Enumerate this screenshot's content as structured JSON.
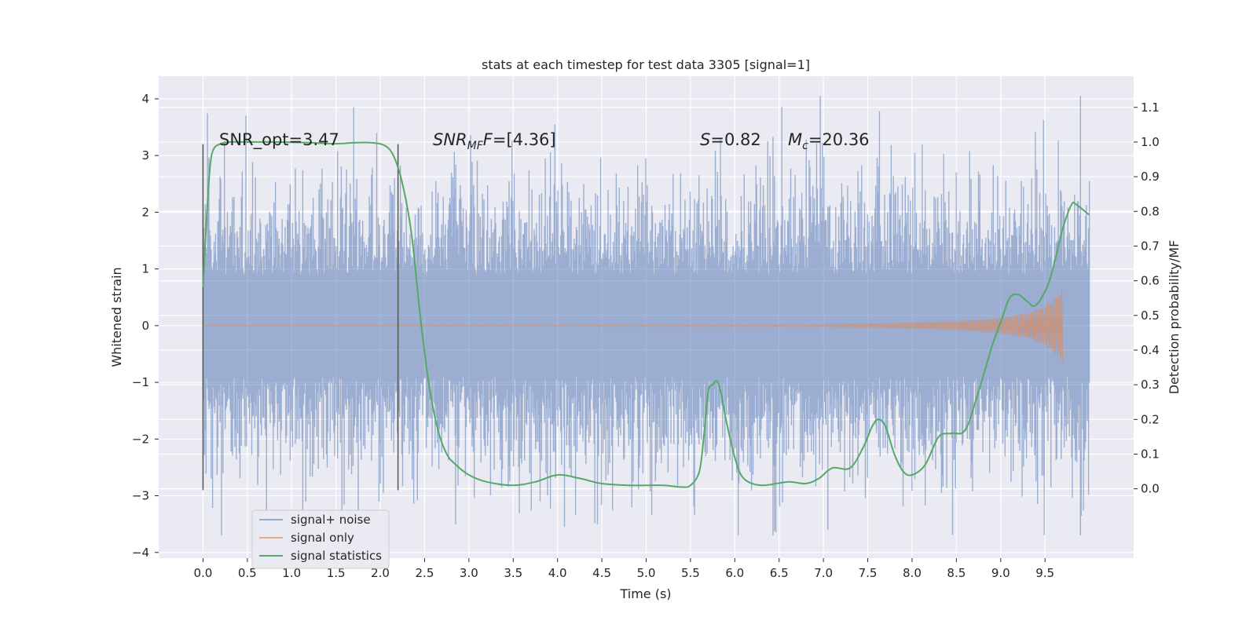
{
  "chart_data": {
    "type": "line",
    "title": "stats at each timestep for test data 3305 [signal=1]",
    "xlabel": "Time (s)",
    "ylabel_left": "Whitened strain",
    "ylabel_right": "Detection probability/MF",
    "grid": true,
    "legend_position": "lower-left",
    "xlim": [
      -0.5,
      10.5
    ],
    "ylim_left": [
      -4.1,
      4.4
    ],
    "ylim_right": [
      -0.2,
      1.19
    ],
    "x_ticks": [
      "0.0",
      "0.5",
      "1.0",
      "1.5",
      "2.0",
      "2.5",
      "3.0",
      "3.5",
      "4.0",
      "4.5",
      "5.0",
      "5.5",
      "6.0",
      "6.5",
      "7.0",
      "7.5",
      "8.0",
      "8.5",
      "9.0",
      "9.5"
    ],
    "y_ticks_left": [
      "4",
      "3",
      "2",
      "1",
      "0",
      "−1",
      "−2",
      "−3",
      "−4"
    ],
    "y_ticks_right": [
      "1.1",
      "1.0",
      "0.9",
      "0.8",
      "0.7",
      "0.6",
      "0.5",
      "0.4",
      "0.3",
      "0.2",
      "0.1",
      "0.0"
    ],
    "annotations": {
      "snr_opt": "SNR_opt=3.47",
      "snr_mf_label": "SNR",
      "snr_mf_sub": "MF",
      "snr_mf_rest": "=[4.36]",
      "s_label": "S",
      "s_value": "=0.82",
      "mc_label": "M",
      "mc_sub": "c",
      "mc_value": "=20.36"
    },
    "vertical_markers": [
      {
        "x": 0.0,
        "y_range": [
          -2.9,
          3.2
        ]
      },
      {
        "x": 2.2,
        "y_range": [
          -2.9,
          3.2
        ]
      }
    ],
    "series": [
      {
        "name": "signal+ noise",
        "color": "#4c72b0",
        "opacity": 0.5,
        "x_range": [
          0.0,
          10.0
        ],
        "typical_amplitude": 1.0,
        "min": -3.7,
        "max": 4.05
      },
      {
        "name": "signal only",
        "color": "#dd8452",
        "x_range": [
          0.0,
          9.7
        ],
        "envelope": [
          [
            0.0,
            0.0
          ],
          [
            7.0,
            0.02
          ],
          [
            8.0,
            0.05
          ],
          [
            8.5,
            0.08
          ],
          [
            9.0,
            0.14
          ],
          [
            9.3,
            0.22
          ],
          [
            9.5,
            0.35
          ],
          [
            9.65,
            0.55
          ],
          [
            9.7,
            0.65
          ]
        ]
      },
      {
        "name": "signal statistics",
        "color": "#55a868",
        "axis": "right",
        "x": [
          0.0,
          0.04,
          0.08,
          0.12,
          0.2,
          0.3,
          0.5,
          0.8,
          1.2,
          1.5,
          1.7,
          1.9,
          2.05,
          2.15,
          2.25,
          2.35,
          2.45,
          2.55,
          2.65,
          2.75,
          2.85,
          3.0,
          3.2,
          3.5,
          3.75,
          4.0,
          4.25,
          4.5,
          4.8,
          5.0,
          5.2,
          5.4,
          5.5,
          5.6,
          5.65,
          5.7,
          5.75,
          5.8,
          5.85,
          5.9,
          6.0,
          6.1,
          6.3,
          6.6,
          6.8,
          6.95,
          7.1,
          7.3,
          7.45,
          7.55,
          7.62,
          7.7,
          7.8,
          7.9,
          8.0,
          8.15,
          8.3,
          8.45,
          8.6,
          8.75,
          8.9,
          9.0,
          9.1,
          9.2,
          9.3,
          9.4,
          9.55,
          9.7,
          9.8,
          9.85,
          9.95,
          10.0
        ],
        "y": [
          0.58,
          0.78,
          0.93,
          0.98,
          0.995,
          1.0,
          1.0,
          1.0,
          0.998,
          0.995,
          0.998,
          0.998,
          0.99,
          0.96,
          0.88,
          0.74,
          0.5,
          0.3,
          0.17,
          0.1,
          0.07,
          0.04,
          0.02,
          0.01,
          0.02,
          0.04,
          0.03,
          0.015,
          0.01,
          0.01,
          0.01,
          0.005,
          0.01,
          0.05,
          0.15,
          0.28,
          0.3,
          0.31,
          0.27,
          0.2,
          0.09,
          0.03,
          0.01,
          0.02,
          0.015,
          0.03,
          0.06,
          0.06,
          0.12,
          0.18,
          0.2,
          0.18,
          0.1,
          0.05,
          0.04,
          0.07,
          0.15,
          0.16,
          0.17,
          0.28,
          0.41,
          0.48,
          0.55,
          0.56,
          0.54,
          0.53,
          0.6,
          0.75,
          0.82,
          0.82,
          0.8,
          0.79
        ]
      }
    ]
  }
}
